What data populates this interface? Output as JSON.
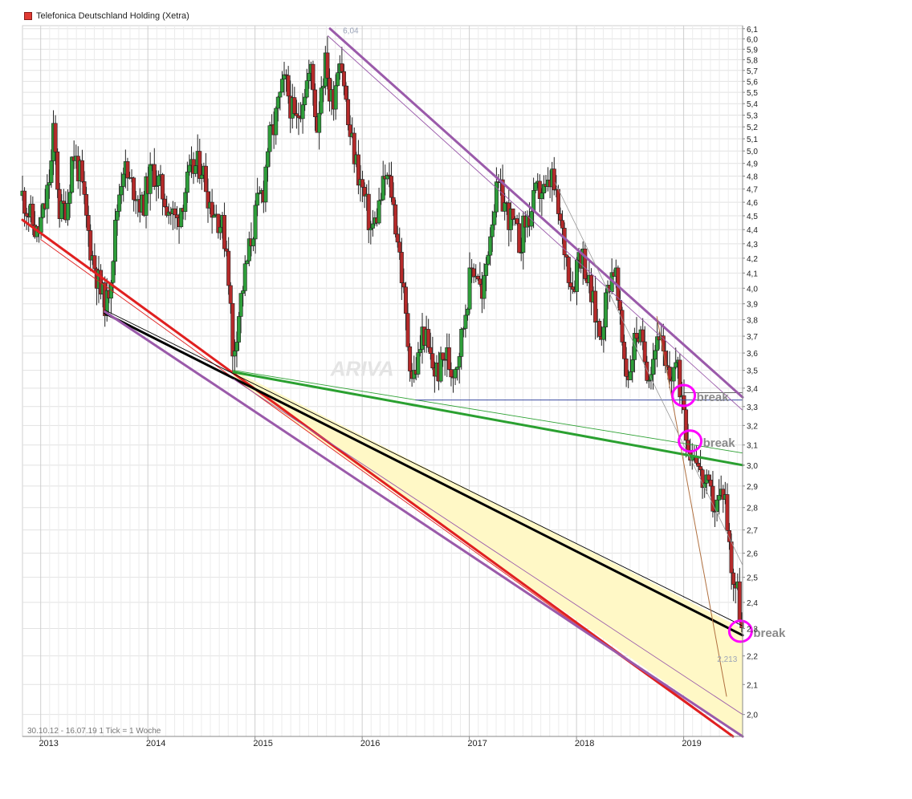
{
  "chart_data": {
    "type": "candlestick",
    "title": "Telefonica Deutschland Holding (Xetra)",
    "title_swatch_color": "#e03a33",
    "range_label": "30.10.12 - 16.07.19",
    "tick_label": "1 Tick = 1 Woche",
    "watermark": "ARIVA",
    "x_axis": {
      "labels": [
        "2013",
        "2014",
        "2015",
        "2016",
        "2017",
        "2018",
        "2019"
      ],
      "range": [
        2012.83,
        2019.55
      ]
    },
    "y_axis": {
      "range": [
        1.93,
        6.13
      ],
      "scale": "log",
      "labels": [
        "2,0",
        "2,1",
        "2,2",
        "2,3",
        "2,4",
        "2,5",
        "2,6",
        "2,7",
        "2,8",
        "2,9",
        "3,0",
        "3,1",
        "3,2",
        "3,3",
        "3,4",
        "3,5",
        "3,6",
        "3,7",
        "3,8",
        "3,9",
        "4,0",
        "4,1",
        "4,2",
        "4,3",
        "4,4",
        "4,5",
        "4,6",
        "4,7",
        "4,8",
        "4,9",
        "5,0",
        "5,1",
        "5,2",
        "5,3",
        "5,4",
        "5,5",
        "5,6",
        "5,7",
        "5,8",
        "5,9",
        "6,0",
        "6,1"
      ]
    },
    "candle_colors": {
      "up": "#2e9e3a",
      "down": "#b52a2a",
      "wick": "#222222"
    },
    "price_path": [
      [
        2012.83,
        4.65
      ],
      [
        2012.9,
        4.5
      ],
      [
        2012.97,
        4.35
      ],
      [
        2013.05,
        4.6
      ],
      [
        2013.1,
        4.9
      ],
      [
        2013.12,
        5.15
      ],
      [
        2013.18,
        4.5
      ],
      [
        2013.25,
        4.6
      ],
      [
        2013.3,
        5.0
      ],
      [
        2013.37,
        4.8
      ],
      [
        2013.42,
        4.5
      ],
      [
        2013.47,
        4.25
      ],
      [
        2013.52,
        4.1
      ],
      [
        2013.57,
        3.95
      ],
      [
        2013.62,
        3.9
      ],
      [
        2013.67,
        4.2
      ],
      [
        2013.72,
        4.6
      ],
      [
        2013.77,
        4.9
      ],
      [
        2013.82,
        4.75
      ],
      [
        2013.88,
        4.7
      ],
      [
        2013.95,
        4.55
      ],
      [
        2014.0,
        4.75
      ],
      [
        2014.05,
        4.85
      ],
      [
        2014.12,
        4.7
      ],
      [
        2014.2,
        4.55
      ],
      [
        2014.27,
        4.45
      ],
      [
        2014.35,
        4.7
      ],
      [
        2014.42,
        4.85
      ],
      [
        2014.5,
        4.9
      ],
      [
        2014.58,
        4.6
      ],
      [
        2014.65,
        4.5
      ],
      [
        2014.7,
        4.4
      ],
      [
        2014.74,
        4.25
      ],
      [
        2014.77,
        3.9
      ],
      [
        2014.79,
        3.55
      ],
      [
        2014.82,
        3.7
      ],
      [
        2014.86,
        3.9
      ],
      [
        2014.92,
        4.15
      ],
      [
        2014.98,
        4.4
      ],
      [
        2015.03,
        4.6
      ],
      [
        2015.08,
        4.7
      ],
      [
        2015.12,
        5.05
      ],
      [
        2015.18,
        5.2
      ],
      [
        2015.22,
        5.4
      ],
      [
        2015.28,
        5.6
      ],
      [
        2015.33,
        5.4
      ],
      [
        2015.38,
        5.2
      ],
      [
        2015.45,
        5.5
      ],
      [
        2015.52,
        5.7
      ],
      [
        2015.58,
        5.2
      ],
      [
        2015.62,
        5.6
      ],
      [
        2015.67,
        5.8
      ],
      [
        2015.7,
        5.4
      ],
      [
        2015.74,
        5.5
      ],
      [
        2015.79,
        5.9
      ],
      [
        2015.83,
        5.6
      ],
      [
        2015.87,
        5.2
      ],
      [
        2015.92,
        5.0
      ],
      [
        2015.97,
        4.8
      ],
      [
        2016.03,
        4.6
      ],
      [
        2016.08,
        4.4
      ],
      [
        2016.12,
        4.45
      ],
      [
        2016.18,
        4.65
      ],
      [
        2016.22,
        4.8
      ],
      [
        2016.27,
        4.7
      ],
      [
        2016.3,
        4.5
      ],
      [
        2016.34,
        4.3
      ],
      [
        2016.38,
        4.0
      ],
      [
        2016.42,
        3.7
      ],
      [
        2016.47,
        3.45
      ],
      [
        2016.52,
        3.55
      ],
      [
        2016.57,
        3.75
      ],
      [
        2016.62,
        3.6
      ],
      [
        2016.67,
        3.5
      ],
      [
        2016.72,
        3.5
      ],
      [
        2016.78,
        3.6
      ],
      [
        2016.83,
        3.5
      ],
      [
        2016.88,
        3.55
      ],
      [
        2016.93,
        3.7
      ],
      [
        2016.98,
        3.95
      ],
      [
        2017.03,
        4.15
      ],
      [
        2017.08,
        4.1
      ],
      [
        2017.12,
        3.9
      ],
      [
        2017.17,
        4.25
      ],
      [
        2017.22,
        4.55
      ],
      [
        2017.27,
        4.7
      ],
      [
        2017.32,
        4.6
      ],
      [
        2017.37,
        4.5
      ],
      [
        2017.42,
        4.4
      ],
      [
        2017.47,
        4.3
      ],
      [
        2017.52,
        4.45
      ],
      [
        2017.57,
        4.5
      ],
      [
        2017.62,
        4.65
      ],
      [
        2017.67,
        4.7
      ],
      [
        2017.72,
        4.65
      ],
      [
        2017.77,
        4.8
      ],
      [
        2017.82,
        4.55
      ],
      [
        2017.87,
        4.35
      ],
      [
        2017.92,
        4.15
      ],
      [
        2017.97,
        4.0
      ],
      [
        2018.02,
        4.25
      ],
      [
        2018.07,
        4.2
      ],
      [
        2018.12,
        4.0
      ],
      [
        2018.17,
        3.85
      ],
      [
        2018.22,
        3.7
      ],
      [
        2018.27,
        3.9
      ],
      [
        2018.32,
        4.1
      ],
      [
        2018.36,
        4.15
      ],
      [
        2018.4,
        3.8
      ],
      [
        2018.44,
        3.6
      ],
      [
        2018.48,
        3.45
      ],
      [
        2018.52,
        3.6
      ],
      [
        2018.57,
        3.75
      ],
      [
        2018.62,
        3.6
      ],
      [
        2018.67,
        3.5
      ],
      [
        2018.72,
        3.6
      ],
      [
        2018.77,
        3.75
      ],
      [
        2018.82,
        3.5
      ],
      [
        2018.87,
        3.45
      ],
      [
        2018.92,
        3.55
      ],
      [
        2018.97,
        3.4
      ],
      [
        2019.0,
        3.35
      ],
      [
        2019.03,
        3.15
      ],
      [
        2019.07,
        3.05
      ],
      [
        2019.11,
        3.1
      ],
      [
        2019.15,
        2.95
      ],
      [
        2019.2,
        2.9
      ],
      [
        2019.25,
        2.85
      ],
      [
        2019.3,
        2.8
      ],
      [
        2019.34,
        2.85
      ],
      [
        2019.38,
        2.9
      ],
      [
        2019.42,
        2.65
      ],
      [
        2019.46,
        2.5
      ],
      [
        2019.5,
        2.45
      ],
      [
        2019.53,
        2.35
      ],
      [
        2019.55,
        2.25
      ]
    ],
    "trendlines": [
      {
        "name": "red-trend-line",
        "color": "#e02020",
        "width": 3,
        "points": [
          [
            2012.83,
            4.47
          ],
          [
            2019.46,
            1.93
          ]
        ]
      },
      {
        "name": "red-trend-line-thin",
        "color": "#e02020",
        "width": 0.9,
        "points": [
          [
            2013.0,
            4.33
          ],
          [
            2019.45,
            1.93
          ]
        ]
      },
      {
        "name": "black-support-line",
        "color": "#000000",
        "width": 3,
        "points": [
          [
            2013.6,
            3.84
          ],
          [
            2019.55,
            2.275
          ]
        ]
      },
      {
        "name": "black-support-line-thin",
        "color": "#000000",
        "width": 0.9,
        "points": [
          [
            2013.6,
            3.86
          ],
          [
            2019.55,
            2.31
          ]
        ]
      },
      {
        "name": "purple-lower-channel",
        "color": "#9a5aaa",
        "width": 3,
        "points": [
          [
            2013.6,
            3.85
          ],
          [
            2019.55,
            1.93
          ]
        ]
      },
      {
        "name": "purple-lower-channel-thin",
        "color": "#9a5aaa",
        "width": 0.9,
        "points": [
          [
            2014.8,
            3.45
          ],
          [
            2019.55,
            2.0
          ]
        ]
      },
      {
        "name": "green-trend-line",
        "color": "#2aa030",
        "width": 3,
        "points": [
          [
            2014.8,
            3.49
          ],
          [
            2019.55,
            3.0
          ]
        ]
      },
      {
        "name": "green-trend-line-thin",
        "color": "#2aa030",
        "width": 0.9,
        "points": [
          [
            2014.8,
            3.5
          ],
          [
            2019.55,
            3.06
          ]
        ]
      },
      {
        "name": "blue-horizontal-support",
        "color": "#3a4aa0",
        "width": 1,
        "points": [
          [
            2016.5,
            3.335
          ],
          [
            2019.55,
            3.335
          ]
        ]
      },
      {
        "name": "dark-horizontal-line",
        "color": "#333333",
        "width": 0.8,
        "points": [
          [
            2019.0,
            3.375
          ],
          [
            2019.55,
            3.375
          ]
        ]
      },
      {
        "name": "purple-upper-channel",
        "color": "#9a5aaa",
        "width": 3,
        "points": [
          [
            2015.7,
            6.1
          ],
          [
            2019.55,
            3.35
          ]
        ]
      },
      {
        "name": "purple-upper-channel-thin",
        "color": "#9a5aaa",
        "width": 0.9,
        "points": [
          [
            2015.68,
            6.03
          ],
          [
            2019.55,
            3.28
          ]
        ]
      },
      {
        "name": "brown-thin-line",
        "color": "#b07040",
        "width": 1,
        "points": [
          [
            2018.75,
            3.82
          ],
          [
            2019.4,
            2.06
          ]
        ]
      },
      {
        "name": "gray-thin-line",
        "color": "#999999",
        "width": 0.8,
        "points": [
          [
            2017.8,
            4.75
          ],
          [
            2019.55,
            2.55
          ]
        ]
      }
    ],
    "shaded_region": {
      "color": "#fff8c6",
      "upper": [
        [
          2014.8,
          3.5
        ],
        [
          2019.55,
          2.3
        ]
      ],
      "lower": [
        [
          2014.8,
          3.45
        ],
        [
          2019.55,
          1.93
        ]
      ]
    },
    "annotations": [
      {
        "type": "circle",
        "name": "break-circle-1",
        "x": 2019.0,
        "y": 3.36,
        "color": "#ff00ff",
        "label": "break"
      },
      {
        "type": "circle",
        "name": "break-circle-2",
        "x": 2019.06,
        "y": 3.12,
        "color": "#ff00ff",
        "label": "break"
      },
      {
        "type": "circle",
        "name": "break-circle-3",
        "x": 2019.53,
        "y": 2.29,
        "color": "#ff00ff",
        "label": "break"
      },
      {
        "type": "value",
        "name": "high-label",
        "x": 2015.82,
        "y": 6.04,
        "label": "6,04"
      },
      {
        "type": "value",
        "name": "low-label",
        "x": 2019.5,
        "y": 2.213,
        "label": "2,213"
      }
    ],
    "grid": true,
    "legend": "none"
  }
}
